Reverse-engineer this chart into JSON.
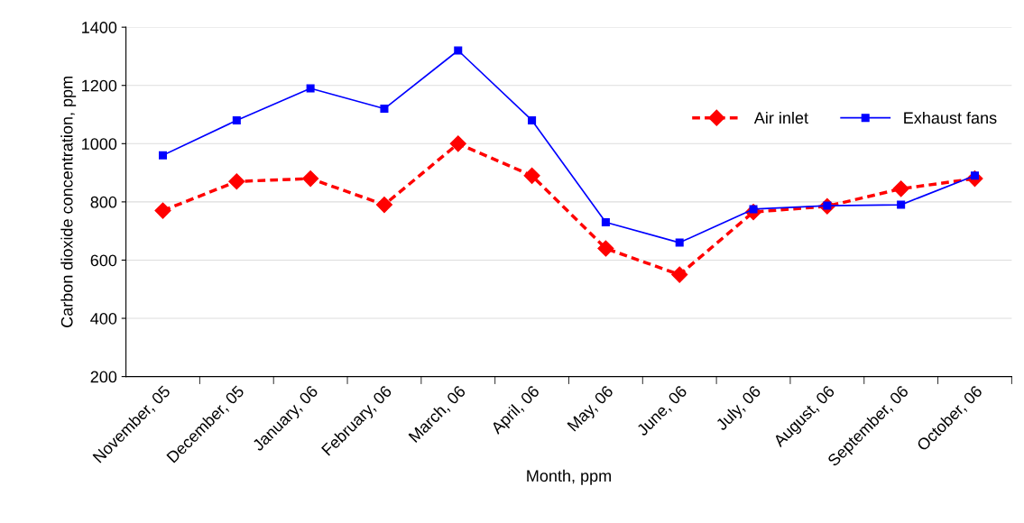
{
  "chart_data": {
    "type": "line",
    "xlabel": "Month, ppm",
    "ylabel": "Carbon dioxide concentration, ppm",
    "categories": [
      "November, 05",
      "December, 05",
      "January, 06",
      "February, 06",
      "March, 06",
      "April, 06",
      "May, 06",
      "June, 06",
      "July, 06",
      "August, 06",
      "September, 06",
      "October, 06"
    ],
    "series": [
      {
        "name": "Air inlet",
        "color": "#ff0000",
        "marker": "diamond",
        "line_style": "dashed",
        "values": [
          770,
          870,
          880,
          790,
          1000,
          890,
          640,
          550,
          765,
          785,
          845,
          880
        ]
      },
      {
        "name": "Exhaust fans",
        "color": "#0000ff",
        "marker": "square",
        "line_style": "solid",
        "values": [
          960,
          1080,
          1190,
          1120,
          1320,
          1080,
          730,
          660,
          775,
          787,
          790,
          890
        ]
      }
    ],
    "ylim": [
      200,
      1400
    ],
    "yticks": [
      200,
      400,
      600,
      800,
      1000,
      1200,
      1400
    ],
    "grid": "y",
    "legend": "top right"
  }
}
